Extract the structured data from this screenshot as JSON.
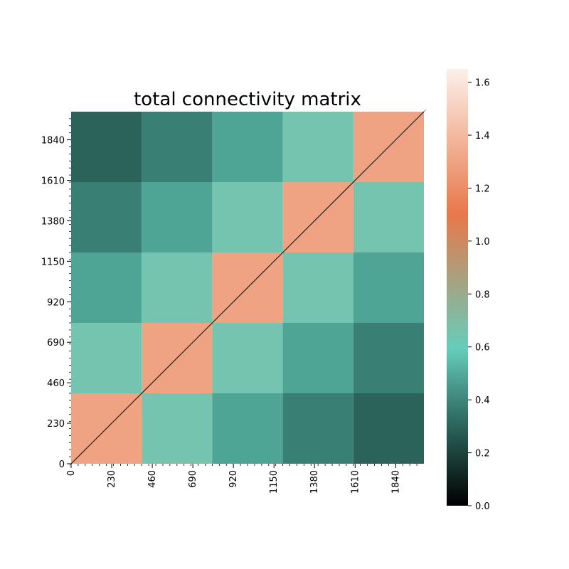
{
  "chart_data": {
    "type": "heatmap",
    "title": "total connectivity matrix",
    "xlabel": "",
    "ylabel": "",
    "xlim": [
      0,
      2000
    ],
    "ylim": [
      0,
      2000
    ],
    "x_tick_labels": [
      "0",
      "230",
      "460",
      "690",
      "920",
      "1150",
      "1380",
      "1610",
      "1840"
    ],
    "y_tick_labels": [
      "0",
      "230",
      "460",
      "690",
      "920",
      "1150",
      "1380",
      "1610",
      "1840"
    ],
    "block_size": 400,
    "block_values": [
      [
        1.3,
        0.65,
        0.48,
        0.38,
        0.3
      ],
      [
        0.65,
        1.3,
        0.65,
        0.48,
        0.38
      ],
      [
        0.48,
        0.65,
        1.3,
        0.65,
        0.48
      ],
      [
        0.38,
        0.48,
        0.65,
        1.3,
        0.65
      ],
      [
        0.3,
        0.38,
        0.48,
        0.65,
        1.3
      ]
    ],
    "diagonal_value": 0.0,
    "colorbar": {
      "min": 0.0,
      "max": 1.65,
      "tick_labels": [
        "0.0",
        "0.2",
        "0.4",
        "0.6",
        "0.8",
        "1.0",
        "1.2",
        "1.4",
        "1.6"
      ],
      "colors": [
        "#000000",
        "#2f6d63",
        "#66cdbb",
        "#e8784a",
        "#fdf0ea"
      ]
    },
    "grid": false
  }
}
